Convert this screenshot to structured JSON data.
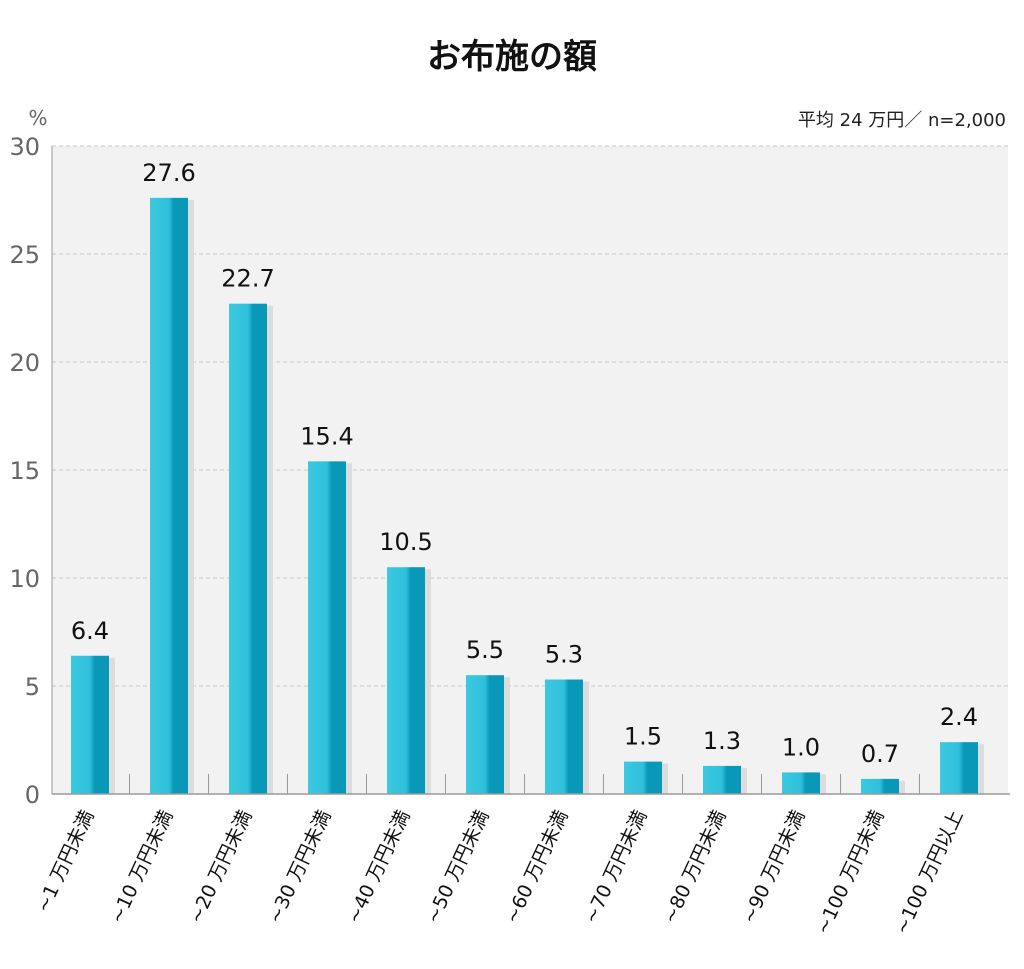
{
  "chart_data": {
    "type": "bar",
    "title": "お布施の額",
    "unit_label": "%",
    "note": "平均 24 万円／ n=2,000",
    "categories": [
      "~1 万円未満",
      "~10 万円未満",
      "~20 万円未満",
      "~30 万円未満",
      "~40 万円未満",
      "~50 万円未満",
      "~60 万円未満",
      "~70 万円未満",
      "~80 万円未満",
      "~90 万円未満",
      "~100 万円未満",
      "~100 万円以上"
    ],
    "values": [
      6.4,
      27.6,
      22.7,
      15.4,
      10.5,
      5.5,
      5.3,
      1.5,
      1.3,
      1.0,
      0.7,
      2.4
    ],
    "value_labels": [
      "6.4",
      "27.6",
      "22.7",
      "15.4",
      "10.5",
      "5.5",
      "5.3",
      "1.5",
      "1.3",
      "1.0",
      "0.7",
      "2.4"
    ],
    "yticks": [
      "0",
      "5",
      "10",
      "15",
      "20",
      "25",
      "30"
    ],
    "ylim": [
      0,
      30
    ],
    "grid": true,
    "colors": {
      "bar_light": "#3cc8e0",
      "bar_dark": "#0a98b8",
      "plot_bg": "#f2f2f2",
      "grid": "#c8c8c8"
    }
  }
}
